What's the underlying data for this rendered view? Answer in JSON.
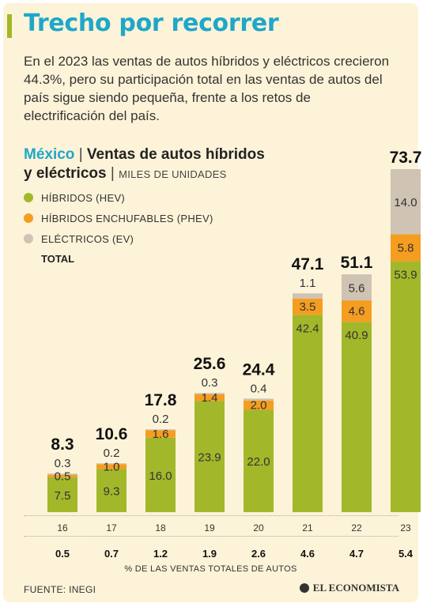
{
  "header": {
    "title": "Trecho por recorrer",
    "intro": "En el 2023 las ventas de autos híbridos y eléctricos crecieron 44.3%, pero su participación total en las ventas de autos del país sigue siendo pequeña, frente a los retos de electrificación del país."
  },
  "chart_heading": {
    "country": "México",
    "separator": "|",
    "title_part1": "Ventas de autos híbridos",
    "title_part2": "y eléctricos",
    "unit": "MILES DE UNIDADES"
  },
  "legend": {
    "hev": "HÍBRIDOS (HEV)",
    "phev": "HÍBRIDOS ENCHUFABLES (PHEV)",
    "ev": "ELÉCTRICOS (EV)",
    "total": "TOTAL"
  },
  "colors": {
    "hev": "#a3b72a",
    "phev": "#f59d20",
    "ev": "#cfc3b3",
    "accent": "#1fa7c9"
  },
  "chart_data": {
    "type": "bar",
    "stacked": true,
    "unit": "MILES DE UNIDADES",
    "categories": [
      "16",
      "17",
      "18",
      "19",
      "20",
      "21",
      "22",
      "23"
    ],
    "series": [
      {
        "name": "HÍBRIDOS (HEV)",
        "values": [
          7.5,
          9.3,
          16.0,
          23.9,
          22.0,
          42.4,
          40.9,
          53.9
        ],
        "labels": [
          "7.5",
          "9.3",
          "16.0",
          "23.9",
          "22.0",
          "42.4",
          "40.9",
          "53.9"
        ]
      },
      {
        "name": "HÍBRIDOS ENCHUFABLES (PHEV)",
        "values": [
          0.5,
          1.0,
          1.6,
          1.4,
          2.0,
          3.5,
          4.6,
          5.8
        ],
        "labels": [
          "0.5",
          "1.0",
          "1.6",
          "1.4",
          "2.0",
          "3.5",
          "4.6",
          "5.8"
        ]
      },
      {
        "name": "ELÉCTRICOS (EV)",
        "values": [
          0.3,
          0.2,
          0.2,
          0.3,
          0.4,
          1.1,
          5.6,
          14.0
        ],
        "labels": [
          "0.3",
          "0.2",
          "0.2",
          "0.3",
          "0.4",
          "1.1",
          "5.6",
          "14.0"
        ]
      }
    ],
    "totals": [
      8.3,
      10.6,
      17.8,
      25.6,
      24.4,
      47.1,
      51.1,
      73.7
    ],
    "total_labels": [
      "8.3",
      "10.6",
      "17.8",
      "25.6",
      "24.4",
      "47.1",
      "51.1",
      "73.7"
    ],
    "share_of_sales": [
      0.5,
      0.7,
      1.2,
      1.9,
      2.6,
      4.6,
      4.7,
      5.4
    ],
    "share_labels": [
      "0.5",
      "0.7",
      "1.2",
      "1.9",
      "2.6",
      "4.6",
      "4.7",
      "5.4"
    ],
    "share_label": "% DE LAS VENTAS TOTALES DE AUTOS",
    "ylim": [
      0,
      73.7
    ],
    "grid": false
  },
  "footer": {
    "source": "FUENTE: INEGI",
    "brand": "EL ECONOMISTA"
  }
}
